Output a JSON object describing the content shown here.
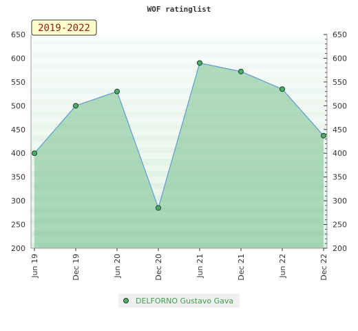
{
  "title": "WOF ratinglist",
  "badge": "2019-2022",
  "legend": {
    "label": "DELFORNO Gustavo Gava"
  },
  "colors": {
    "line": "#5b9bd5",
    "area": "#76c08d",
    "marker": "#4caf6a",
    "badge_bg": "#ffffcc",
    "legend_text": "#3aa04a"
  },
  "chart_data": {
    "type": "area",
    "title": "WOF ratinglist",
    "categories": [
      "Jun 19",
      "Dec 19",
      "Jun 20",
      "Dec 20",
      "Jun 21",
      "Dec 21",
      "Jun 22",
      "Dec 22"
    ],
    "yticks": [
      200,
      250,
      300,
      350,
      400,
      450,
      500,
      550,
      600,
      650
    ],
    "ylim": [
      200,
      650
    ],
    "series": [
      {
        "name": "DELFORNO Gustavo Gava",
        "values": [
          400,
          500,
          530,
          285,
          590,
          572,
          535,
          437
        ]
      }
    ],
    "grid": true,
    "legend_position": "bottom"
  }
}
